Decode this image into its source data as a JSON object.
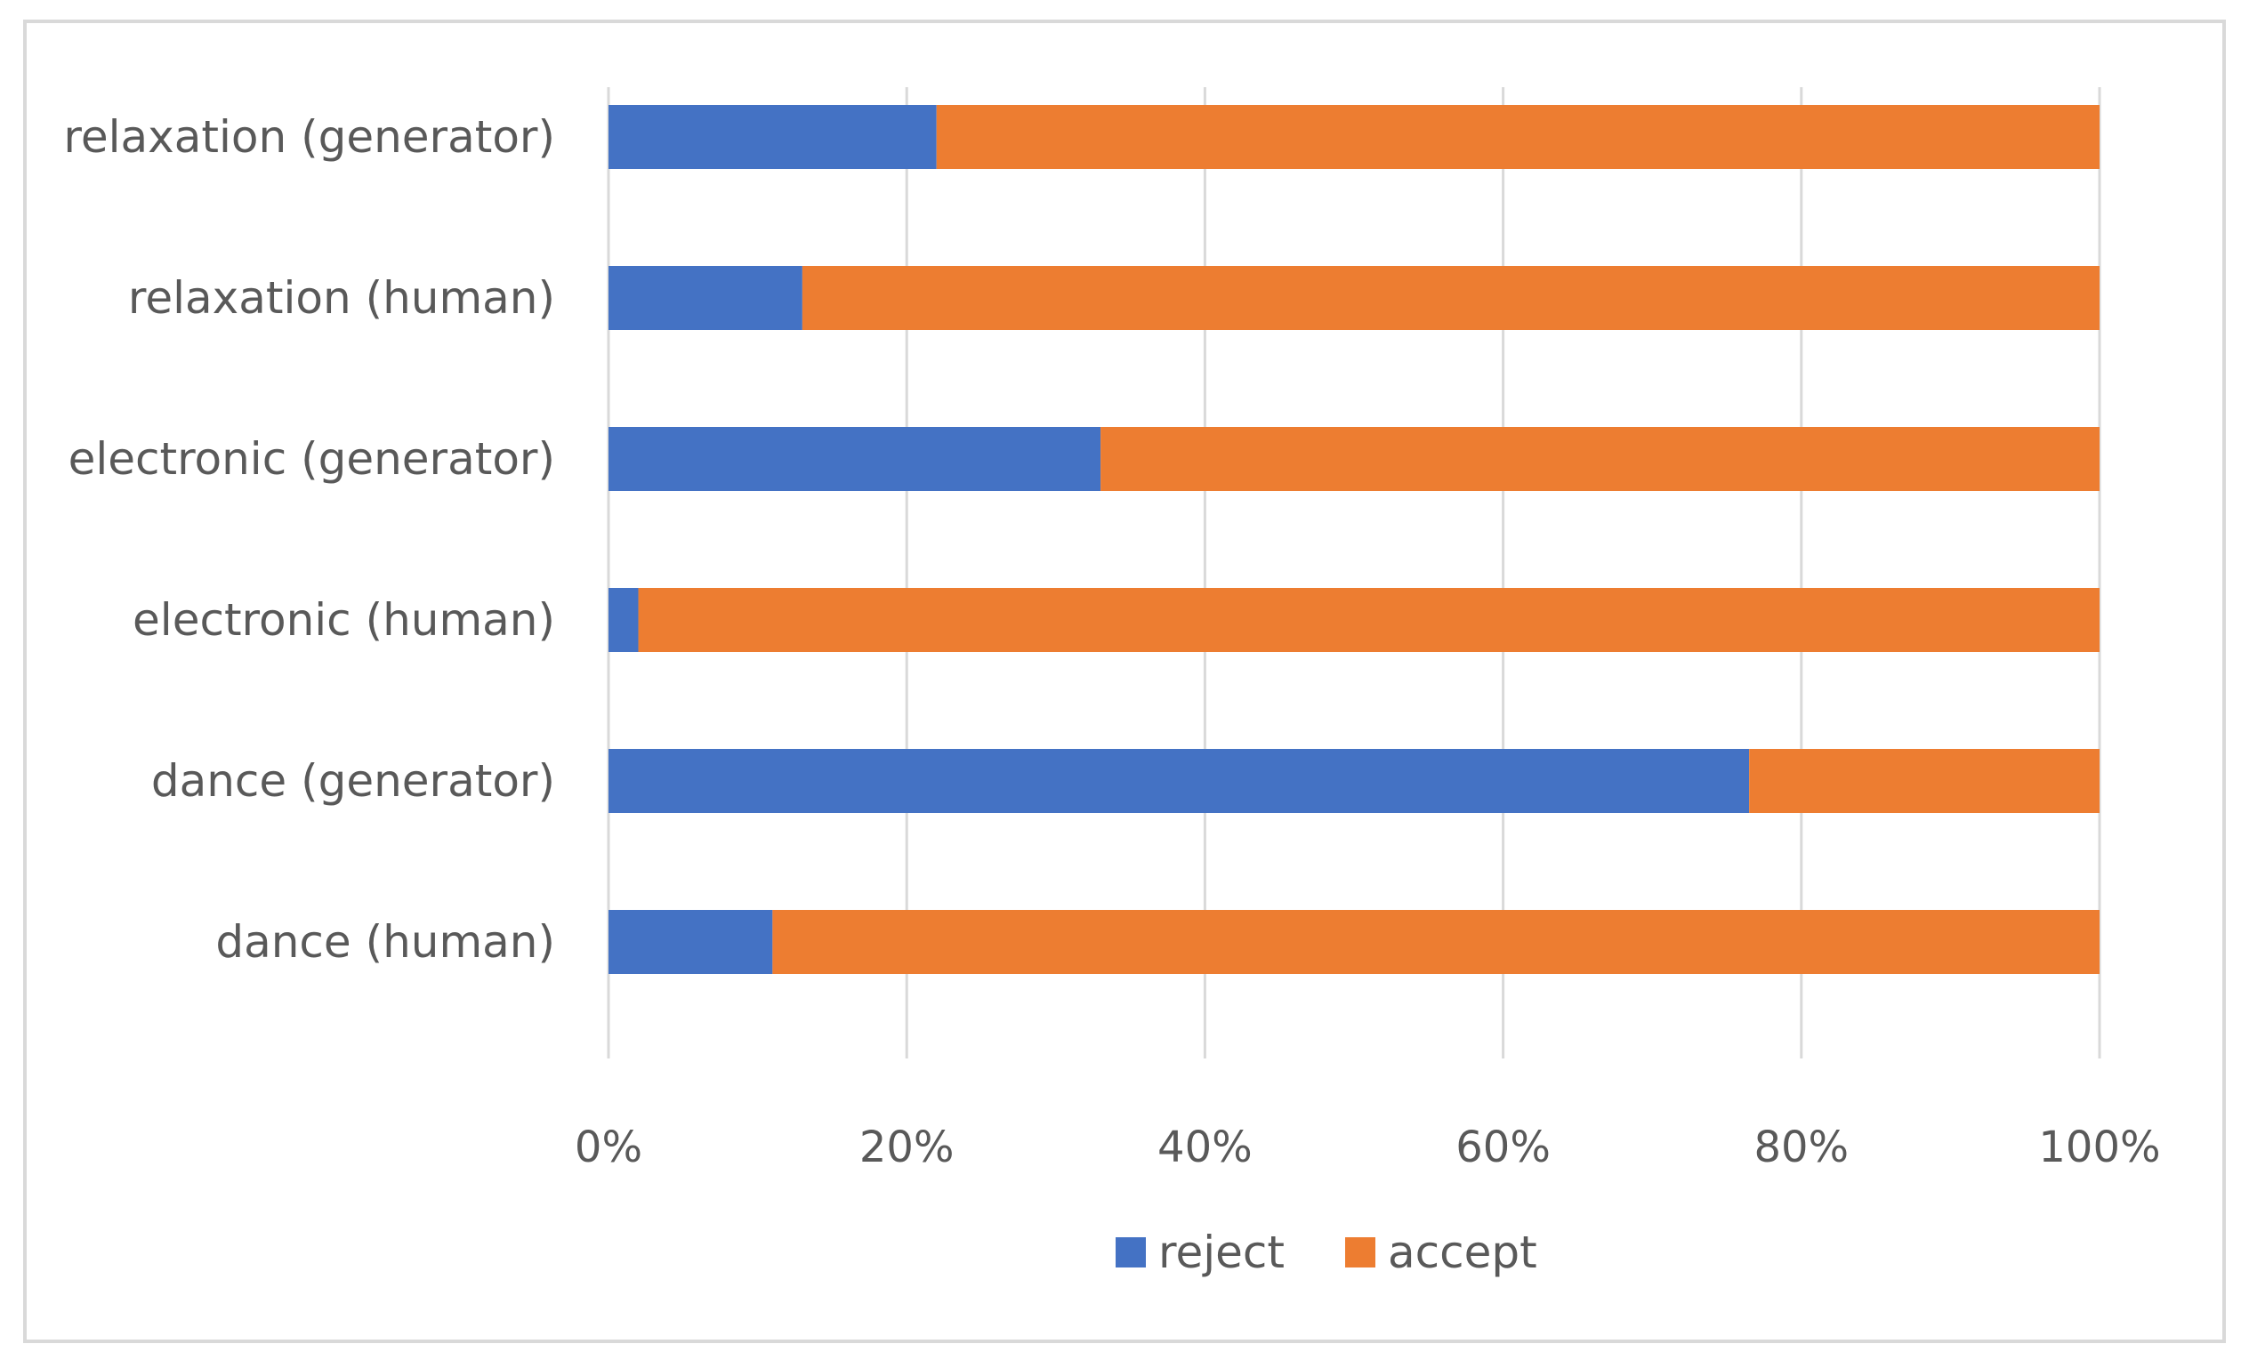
{
  "chart_data": {
    "type": "bar",
    "orientation": "horizontal",
    "stacked": "percent",
    "categories": [
      "dance (human)",
      "dance (generator)",
      "electronic (human)",
      "electronic (generator)",
      "relaxation (human)",
      "relaxation (generator)"
    ],
    "series": [
      {
        "name": "reject",
        "color": "#4472C4",
        "values": [
          11,
          76.5,
          2,
          33,
          13,
          22
        ]
      },
      {
        "name": "accept",
        "color": "#ED7D31",
        "values": [
          89,
          23.5,
          98,
          67,
          87,
          78
        ]
      }
    ],
    "x_ticks": [
      "0%",
      "20%",
      "40%",
      "60%",
      "80%",
      "100%"
    ],
    "xlim": [
      0,
      100
    ],
    "title": "",
    "xlabel": "",
    "ylabel": "",
    "grid": "vertical",
    "legend": "bottom-center",
    "gridline_color": "#d9d9d9"
  }
}
